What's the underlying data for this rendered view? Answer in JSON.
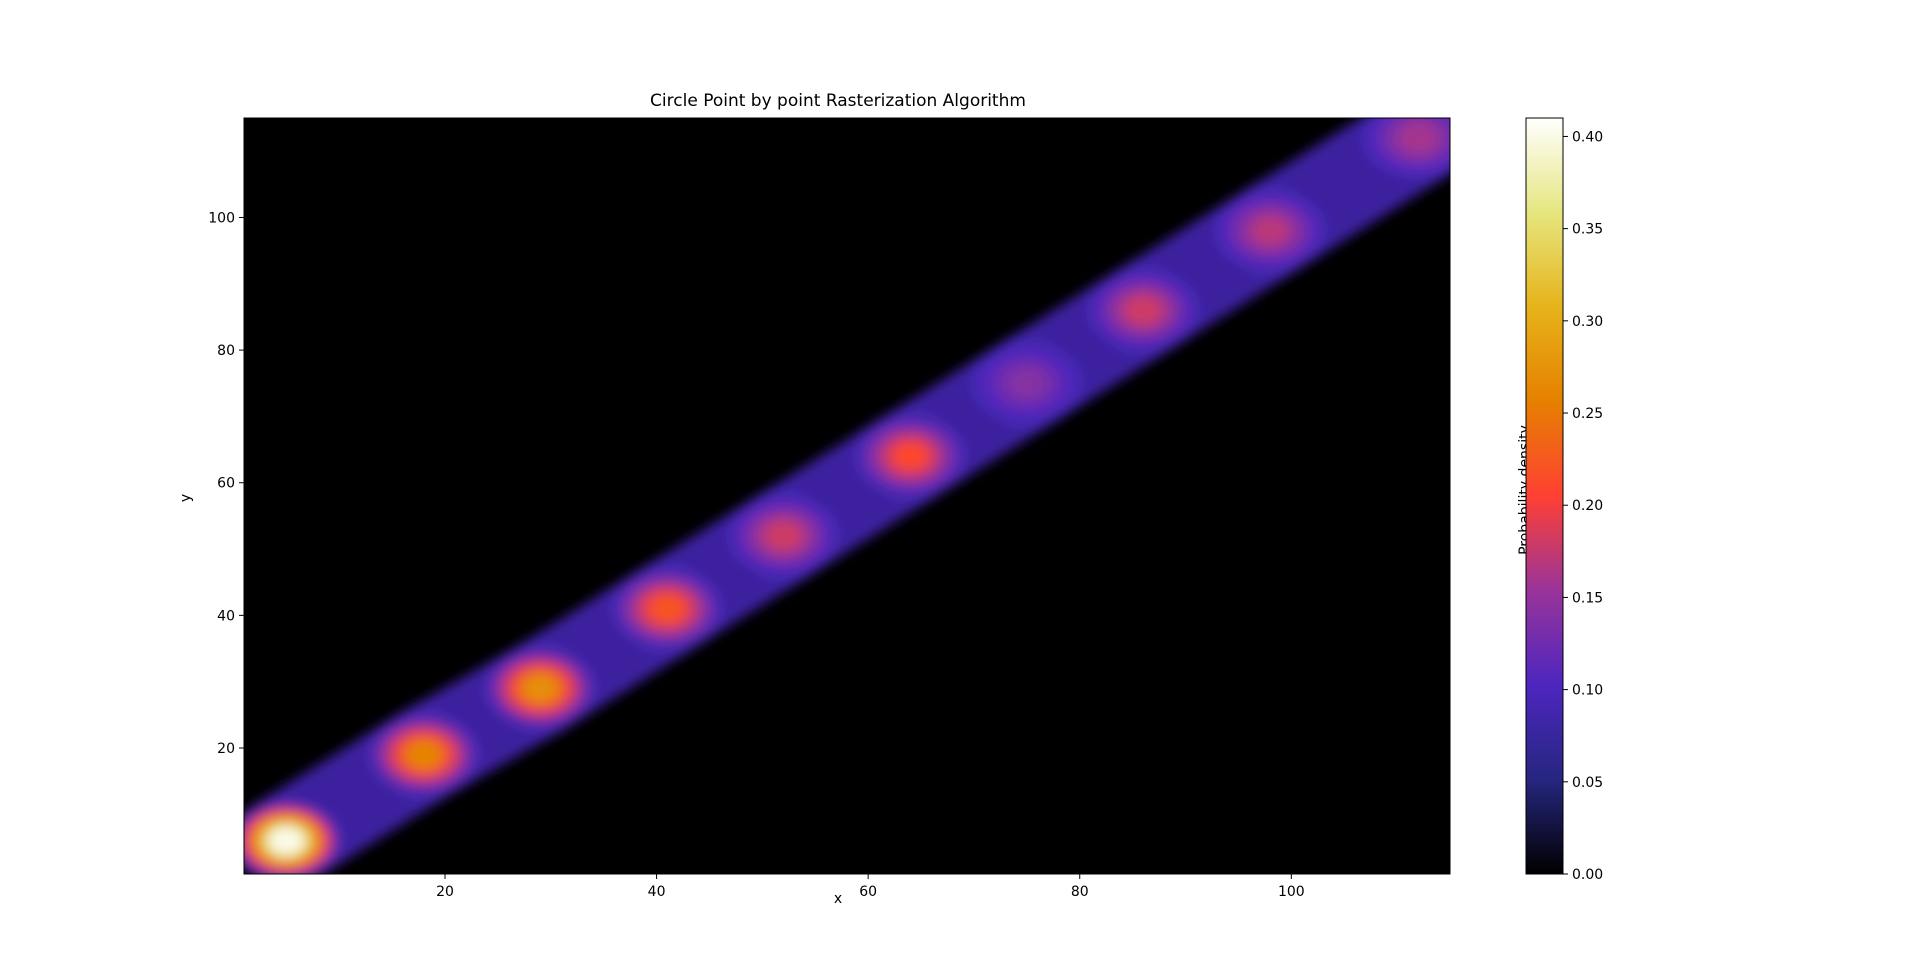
{
  "chart_data": {
    "type": "heatmap",
    "title": "Circle Point by point Rasterization Algorithm",
    "xlabel": "x",
    "ylabel": "y",
    "xlim": [
      1,
      115
    ],
    "ylim": [
      1,
      115
    ],
    "xticks": [
      20,
      40,
      60,
      80,
      100
    ],
    "yticks": [
      20,
      40,
      60,
      80,
      100
    ],
    "colormap": "CMRmap",
    "colorbar": {
      "label": "Probability density",
      "range": [
        0.0,
        0.41
      ],
      "ticks": [
        "0.00",
        "0.05",
        "0.10",
        "0.15",
        "0.20",
        "0.25",
        "0.30",
        "0.35",
        "0.40"
      ],
      "tick_values": [
        0.0,
        0.05,
        0.1,
        0.15,
        0.2,
        0.25,
        0.3,
        0.35,
        0.4
      ]
    },
    "colors": [
      "#000000",
      "#262680",
      "#4d26bf",
      "#993399",
      "#ff4033",
      "#e68000",
      "#e6b31a",
      "#e6e680",
      "#ffffff"
    ],
    "hotspots": [
      {
        "x": 5,
        "y": 6,
        "value": 0.4
      },
      {
        "x": 18,
        "y": 19,
        "value": 0.26
      },
      {
        "x": 29,
        "y": 29,
        "value": 0.27
      },
      {
        "x": 41,
        "y": 41,
        "value": 0.22
      },
      {
        "x": 52,
        "y": 52,
        "value": 0.18
      },
      {
        "x": 64,
        "y": 64,
        "value": 0.21
      },
      {
        "x": 75,
        "y": 75,
        "value": 0.14
      },
      {
        "x": 86,
        "y": 86,
        "value": 0.18
      },
      {
        "x": 98,
        "y": 98,
        "value": 0.17
      },
      {
        "x": 112,
        "y": 112,
        "value": 0.16
      }
    ]
  }
}
